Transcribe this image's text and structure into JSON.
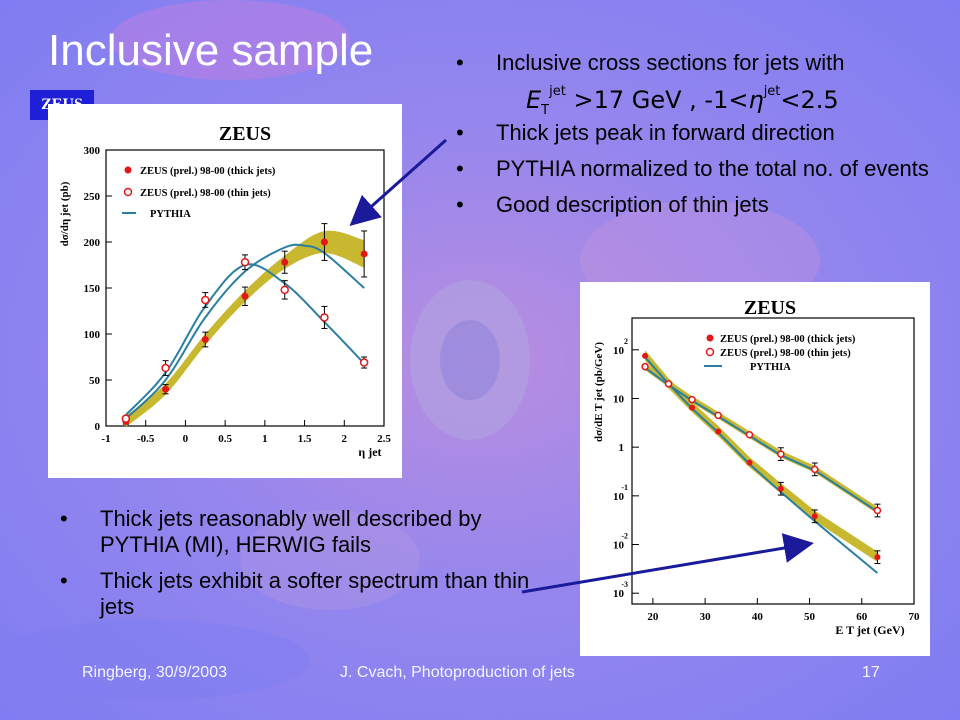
{
  "slide": {
    "title": "Inclusive sample",
    "logo_text": "ZEUS",
    "top_bullets": [
      "Inclusive cross sections for jets with",
      "Thick jets peak in forward direction",
      "PYTHIA normalized to the total no. of events",
      "Good description of thin jets"
    ],
    "formula": {
      "et": "E",
      "et_sup": "jet",
      "et_sub": "T",
      "gt": " >17 GeV  ,  -1<",
      "eta": "η",
      "eta_sup": "jet",
      "lt": "<2.5"
    },
    "bottom_bullets": [
      "Thick jets reasonably well described by PYTHIA (MI), HERWIG fails",
      "Thick jets exhibit a softer spectrum than thin jets"
    ],
    "footer": {
      "left": "Ringberg, 30/9/2003",
      "center": "J. Cvach, Photoproduction of jets",
      "right": "17"
    },
    "colors": {
      "background": "#7f7df2",
      "thick": "#e01818",
      "band": "#c8b830",
      "pythia": "#2a7fa0",
      "arrow": "#1a1a9a"
    }
  },
  "chart_data": [
    {
      "type": "scatter",
      "title": "ZEUS",
      "xlabel": "η jet",
      "ylabel": "dσ/dη jet (pb)",
      "xlim": [
        -1,
        2.5
      ],
      "ylim": [
        0,
        300
      ],
      "xticks": [
        "-1",
        "-0.5",
        "0",
        "0.5",
        "1",
        "1.5",
        "2",
        "2.5"
      ],
      "yticks": [
        "0",
        "50",
        "100",
        "150",
        "200",
        "250",
        "300"
      ],
      "legend": [
        "ZEUS (prel.) 98-00 (thick jets)",
        "ZEUS (prel.) 98-00 (thin  jets)",
        "PYTHIA"
      ],
      "legend_position": "top-left",
      "x": [
        -0.75,
        -0.25,
        0.25,
        0.75,
        1.25,
        1.75,
        2.25
      ],
      "series": [
        {
          "name": "ZEUS (prel.) 98-00 (thick jets)",
          "values": [
            5,
            40,
            94,
            141,
            178,
            200,
            187
          ],
          "errors": [
            3,
            5,
            8,
            10,
            12,
            20,
            25
          ]
        },
        {
          "name": "ZEUS (prel.) 98-00 (thin  jets)",
          "values": [
            8,
            63,
            137,
            178,
            148,
            118,
            69
          ],
          "errors": [
            3,
            8,
            8,
            8,
            10,
            12,
            6
          ]
        }
      ]
    },
    {
      "type": "scatter",
      "title": "ZEUS",
      "xlabel": "E T jet (GeV)",
      "ylabel": "dσ/dE T jet (pb/GeV)",
      "log_y": true,
      "xlim": [
        16,
        70
      ],
      "ylim": [
        0.0006,
        450
      ],
      "xticks": [
        "20",
        "30",
        "40",
        "50",
        "60",
        "70"
      ],
      "yticks": [
        "10^2",
        "10",
        "1",
        "10^-1",
        "10^-2",
        "10^-3"
      ],
      "legend": [
        "ZEUS (prel.) 98-00 (thick jets)",
        "ZEUS (prel.) 98-00 (thin  jets)",
        "PYTHIA"
      ],
      "legend_position": "top-right",
      "x": [
        18.5,
        23,
        27.5,
        32.5,
        38.5,
        44.5,
        51,
        63
      ],
      "series": [
        {
          "name": "ZEUS (prel.) 98-00 (thick jets)",
          "values": [
            75,
            20,
            6.5,
            2.1,
            0.48,
            0.14,
            0.038,
            0.0055
          ]
        },
        {
          "name": "ZEUS (prel.) 98-00 (thin  jets)",
          "values": [
            45,
            20,
            9.5,
            4.5,
            1.8,
            0.72,
            0.35,
            0.05
          ]
        }
      ]
    }
  ]
}
